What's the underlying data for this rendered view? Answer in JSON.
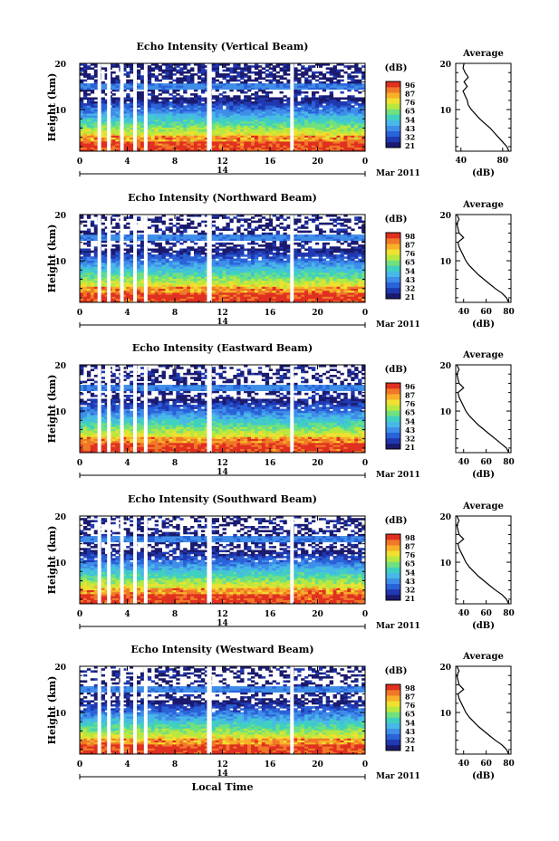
{
  "chart_data": [
    {
      "type": "heatmap",
      "title": "Echo Intensity (Vertical Beam)",
      "ylabel": "Height (km)",
      "ylim": [
        1,
        20
      ],
      "y_ticks": [
        "10",
        "20"
      ],
      "x_ticks": [
        "0",
        "4",
        "8",
        "12",
        "16",
        "20",
        "0"
      ],
      "xlim": [
        0,
        24
      ],
      "date_tick": "14",
      "date_label": "Mar 2011",
      "colorbar": {
        "unit": "(dB)",
        "labels": [
          "96",
          "87",
          "76",
          "65",
          "54",
          "43",
          "32",
          "21"
        ]
      },
      "profile": {
        "title": "Average",
        "xlabel": "(dB)",
        "x_ticks": [
          "40",
          "80"
        ],
        "xlim": [
          35,
          88
        ],
        "y_ticks": [
          "10",
          "20"
        ],
        "points": [
          [
            86,
            1
          ],
          [
            84,
            2
          ],
          [
            80,
            3
          ],
          [
            76,
            4
          ],
          [
            72,
            5
          ],
          [
            68,
            6
          ],
          [
            63,
            7
          ],
          [
            58,
            8
          ],
          [
            54,
            9
          ],
          [
            50,
            10
          ],
          [
            47,
            11
          ],
          [
            46,
            12
          ],
          [
            44,
            13
          ],
          [
            42,
            14
          ],
          [
            46,
            15
          ],
          [
            43,
            16
          ],
          [
            47,
            17
          ],
          [
            44,
            18
          ],
          [
            42,
            19
          ],
          [
            43,
            20
          ]
        ]
      }
    },
    {
      "type": "heatmap",
      "title": "Echo Intensity (Northward Beam)",
      "ylabel": "Height (km)",
      "ylim": [
        1,
        20
      ],
      "y_ticks": [
        "10",
        "20"
      ],
      "x_ticks": [
        "0",
        "4",
        "8",
        "12",
        "16",
        "20",
        "0"
      ],
      "xlim": [
        0,
        24
      ],
      "date_tick": "14",
      "date_label": "Mar 2011",
      "colorbar": {
        "unit": "(dB)",
        "labels": [
          "98",
          "87",
          "76",
          "65",
          "54",
          "43",
          "32",
          "21"
        ]
      },
      "profile": {
        "title": "Average",
        "xlabel": "(dB)",
        "x_ticks": [
          "40",
          "60",
          "80"
        ],
        "xlim": [
          33,
          82
        ],
        "y_ticks": [
          "10",
          "20"
        ],
        "points": [
          [
            80,
            1
          ],
          [
            78,
            2
          ],
          [
            74,
            3
          ],
          [
            68,
            4
          ],
          [
            63,
            5
          ],
          [
            58,
            6
          ],
          [
            53,
            7
          ],
          [
            49,
            8
          ],
          [
            45,
            9
          ],
          [
            42,
            10
          ],
          [
            40,
            11
          ],
          [
            38,
            12
          ],
          [
            36,
            13
          ],
          [
            35,
            14
          ],
          [
            40,
            15
          ],
          [
            36,
            16
          ],
          [
            35,
            17
          ],
          [
            34,
            18
          ],
          [
            36,
            19
          ],
          [
            34,
            20
          ]
        ]
      }
    },
    {
      "type": "heatmap",
      "title": "Echo Intensity (Eastward Beam)",
      "ylabel": "Height (km)",
      "ylim": [
        1,
        20
      ],
      "y_ticks": [
        "10",
        "20"
      ],
      "x_ticks": [
        "0",
        "4",
        "8",
        "12",
        "16",
        "20",
        "0"
      ],
      "xlim": [
        0,
        24
      ],
      "date_tick": "14",
      "date_label": "Mar 2011",
      "colorbar": {
        "unit": "(dB)",
        "labels": [
          "96",
          "87",
          "76",
          "65",
          "54",
          "43",
          "32",
          "21"
        ]
      },
      "profile": {
        "title": "Average",
        "xlabel": "(dB)",
        "x_ticks": [
          "40",
          "60",
          "80"
        ],
        "xlim": [
          33,
          82
        ],
        "y_ticks": [
          "10",
          "20"
        ],
        "points": [
          [
            80,
            1
          ],
          [
            78,
            2
          ],
          [
            73,
            3
          ],
          [
            68,
            4
          ],
          [
            63,
            5
          ],
          [
            58,
            6
          ],
          [
            53,
            7
          ],
          [
            49,
            8
          ],
          [
            45,
            9
          ],
          [
            42,
            10
          ],
          [
            40,
            11
          ],
          [
            38,
            12
          ],
          [
            36,
            13
          ],
          [
            35,
            14
          ],
          [
            40,
            15
          ],
          [
            36,
            16
          ],
          [
            35,
            17
          ],
          [
            34,
            18
          ],
          [
            36,
            19
          ],
          [
            34,
            20
          ]
        ]
      }
    },
    {
      "type": "heatmap",
      "title": "Echo Intensity (Southward Beam)",
      "ylabel": "Height (km)",
      "ylim": [
        1,
        20
      ],
      "y_ticks": [
        "10",
        "20"
      ],
      "x_ticks": [
        "0",
        "4",
        "8",
        "12",
        "16",
        "20",
        "0"
      ],
      "xlim": [
        0,
        24
      ],
      "date_tick": "14",
      "date_label": "Mar 2011",
      "colorbar": {
        "unit": "(dB)",
        "labels": [
          "98",
          "87",
          "76",
          "65",
          "54",
          "43",
          "32",
          "21"
        ]
      },
      "profile": {
        "title": "Average",
        "xlabel": "(dB)",
        "x_ticks": [
          "40",
          "60",
          "80"
        ],
        "xlim": [
          33,
          82
        ],
        "y_ticks": [
          "10",
          "20"
        ],
        "points": [
          [
            80,
            1
          ],
          [
            78,
            2
          ],
          [
            74,
            3
          ],
          [
            68,
            4
          ],
          [
            63,
            5
          ],
          [
            58,
            6
          ],
          [
            53,
            7
          ],
          [
            49,
            8
          ],
          [
            45,
            9
          ],
          [
            42,
            10
          ],
          [
            40,
            11
          ],
          [
            38,
            12
          ],
          [
            36,
            13
          ],
          [
            35,
            14
          ],
          [
            40,
            15
          ],
          [
            36,
            16
          ],
          [
            35,
            17
          ],
          [
            34,
            18
          ],
          [
            36,
            19
          ],
          [
            34,
            20
          ]
        ]
      }
    },
    {
      "type": "heatmap",
      "title": "Echo Intensity (Westward Beam)",
      "ylabel": "Height (km)",
      "ylim": [
        1,
        20
      ],
      "y_ticks": [
        "10",
        "20"
      ],
      "x_ticks": [
        "0",
        "4",
        "8",
        "12",
        "16",
        "20",
        "0"
      ],
      "xlim": [
        0,
        24
      ],
      "date_tick": "14",
      "date_label": "Mar 2011",
      "xlabel": "Local Time",
      "colorbar": {
        "unit": "(dB)",
        "labels": [
          "98",
          "87",
          "76",
          "65",
          "54",
          "43",
          "32",
          "21"
        ]
      },
      "profile": {
        "title": "Average",
        "xlabel": "(dB)",
        "x_ticks": [
          "40",
          "60",
          "80"
        ],
        "xlim": [
          33,
          82
        ],
        "y_ticks": [
          "10",
          "20"
        ],
        "points": [
          [
            80,
            1
          ],
          [
            78,
            2
          ],
          [
            74,
            3
          ],
          [
            68,
            4
          ],
          [
            63,
            5
          ],
          [
            58,
            6
          ],
          [
            53,
            7
          ],
          [
            49,
            8
          ],
          [
            45,
            9
          ],
          [
            42,
            10
          ],
          [
            40,
            11
          ],
          [
            38,
            12
          ],
          [
            36,
            13
          ],
          [
            35,
            14
          ],
          [
            40,
            15
          ],
          [
            36,
            16
          ],
          [
            35,
            17
          ],
          [
            34,
            18
          ],
          [
            36,
            19
          ],
          [
            34,
            20
          ]
        ]
      }
    }
  ],
  "data_gaps_hours": [
    [
      1.5,
      1.8
    ],
    [
      2.3,
      2.6
    ],
    [
      3.4,
      3.7
    ],
    [
      4.5,
      4.8
    ],
    [
      5.4,
      5.7
    ],
    [
      10.7,
      11.1
    ],
    [
      17.7,
      18.0
    ]
  ],
  "colors": {
    "palette": [
      "#1a1a6e",
      "#2038b0",
      "#2a62d8",
      "#3f8ee8",
      "#48b8e8",
      "#40d0c0",
      "#70e080",
      "#b8e840",
      "#f0e030",
      "#f8b028",
      "#f07828",
      "#e03020"
    ]
  }
}
